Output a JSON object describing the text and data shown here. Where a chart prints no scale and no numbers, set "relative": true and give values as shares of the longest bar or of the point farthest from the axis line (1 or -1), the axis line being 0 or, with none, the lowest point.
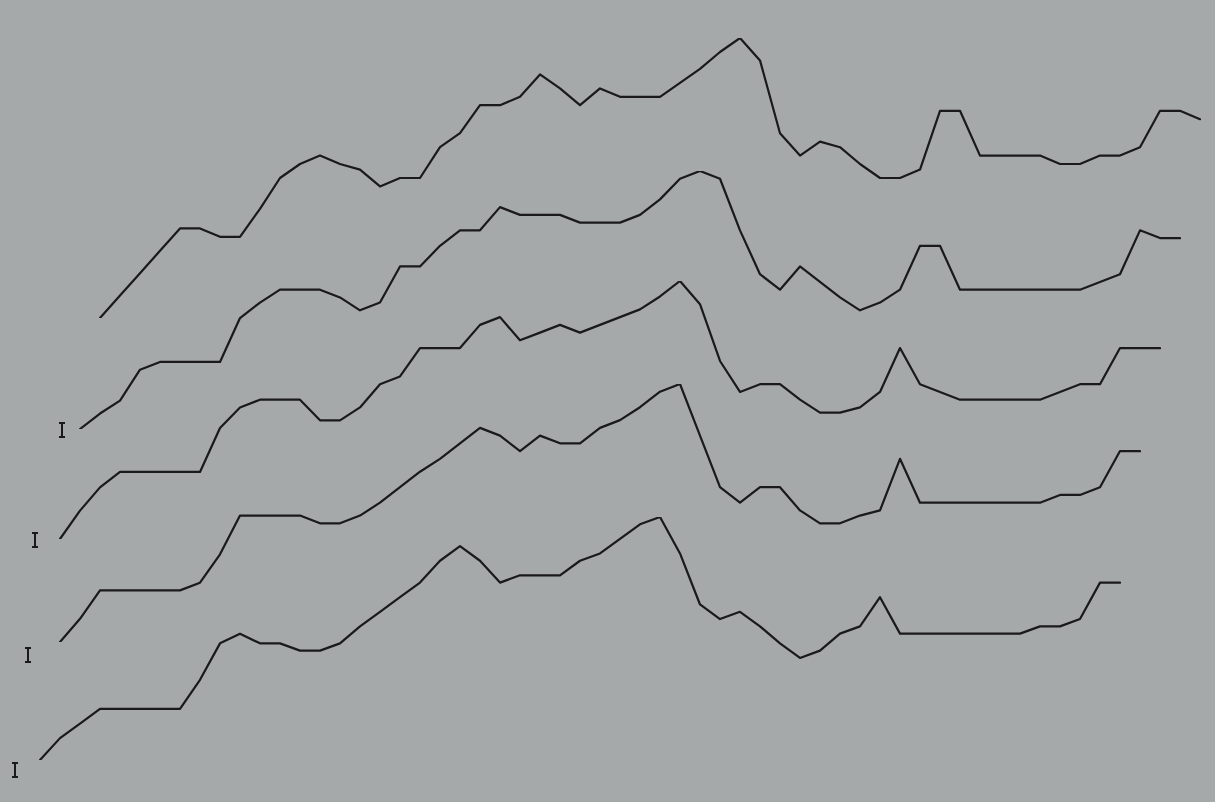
{
  "chart_data": [
    {
      "type": "line",
      "relative": true,
      "tick_labels": false,
      "marker": "none",
      "line_style": "solid",
      "categories": [
        null,
        null,
        null,
        null,
        null,
        null,
        null,
        null,
        null,
        null,
        null,
        null,
        null,
        null,
        null,
        null,
        null,
        null,
        null,
        null,
        null,
        null,
        null,
        null,
        null,
        null,
        null,
        null,
        null,
        null,
        null,
        null,
        null,
        null,
        null,
        null,
        null,
        null,
        null,
        null,
        null,
        null,
        null,
        null,
        null,
        null,
        null,
        null,
        null,
        null,
        null,
        null,
        null,
        null,
        null,
        null
      ],
      "series": [
        {
          "color": "#1a1a1a",
          "values": [
            0,
            0.08,
            0.16,
            0.24,
            0.32,
            0.32,
            0.29,
            0.29,
            0.39,
            0.5,
            0.55,
            0.58,
            0.55,
            0.53,
            0.47,
            0.5,
            0.5,
            0.61,
            0.66,
            0.76,
            0.76,
            0.79,
            0.87,
            0.82,
            0.76,
            0.82,
            0.79,
            0.79,
            0.79,
            0.84,
            0.89,
            0.95,
            1,
            0.92,
            0.66,
            0.58,
            0.63,
            0.61,
            0.55,
            0.5,
            0.5,
            0.53,
            0.74,
            0.74,
            0.58,
            0.58,
            0.58,
            0.58,
            0.55,
            0.55,
            0.58,
            0.58,
            0.61,
            0.74,
            0.74,
            0.71
          ]
        }
      ]
    },
    {
      "type": "line",
      "relative": true,
      "tick_labels": false,
      "marker": "none",
      "line_style": "solid",
      "categories": [
        null,
        null,
        null,
        null,
        null,
        null,
        null,
        null,
        null,
        null,
        null,
        null,
        null,
        null,
        null,
        null,
        null,
        null,
        null,
        null,
        null,
        null,
        null,
        null,
        null,
        null,
        null,
        null,
        null,
        null,
        null,
        null,
        null,
        null,
        null,
        null,
        null,
        null,
        null,
        null,
        null,
        null,
        null,
        null,
        null,
        null,
        null,
        null,
        null,
        null,
        null,
        null,
        null,
        null,
        null,
        null
      ],
      "series": [
        {
          "color": "#1a1a1a",
          "values": [
            0,
            0.06,
            0.11,
            0.23,
            0.26,
            0.26,
            0.26,
            0.26,
            0.43,
            0.49,
            0.54,
            0.54,
            0.54,
            0.51,
            0.46,
            0.49,
            0.63,
            0.63,
            0.71,
            0.77,
            0.77,
            0.86,
            0.83,
            0.83,
            0.83,
            0.8,
            0.8,
            0.8,
            0.83,
            0.89,
            0.97,
            1,
            0.97,
            0.77,
            0.6,
            0.54,
            0.63,
            0.57,
            0.51,
            0.46,
            0.49,
            0.54,
            0.71,
            0.71,
            0.54,
            0.54,
            0.54,
            0.54,
            0.54,
            0.54,
            0.54,
            0.57,
            0.6,
            0.77,
            0.74,
            0.74
          ]
        }
      ]
    },
    {
      "type": "line",
      "relative": true,
      "tick_labels": false,
      "marker": "none",
      "line_style": "solid",
      "categories": [
        null,
        null,
        null,
        null,
        null,
        null,
        null,
        null,
        null,
        null,
        null,
        null,
        null,
        null,
        null,
        null,
        null,
        null,
        null,
        null,
        null,
        null,
        null,
        null,
        null,
        null,
        null,
        null,
        null,
        null,
        null,
        null,
        null,
        null,
        null,
        null,
        null,
        null,
        null,
        null,
        null,
        null,
        null,
        null,
        null,
        null,
        null,
        null,
        null,
        null,
        null,
        null,
        null,
        null,
        null,
        null
      ],
      "series": [
        {
          "color": "#1a1a1a",
          "values": [
            0,
            0.11,
            0.2,
            0.26,
            0.26,
            0.26,
            0.26,
            0.26,
            0.43,
            0.51,
            0.54,
            0.54,
            0.54,
            0.46,
            0.46,
            0.51,
            0.6,
            0.63,
            0.74,
            0.74,
            0.74,
            0.83,
            0.86,
            0.77,
            0.8,
            0.83,
            0.8,
            0.83,
            0.86,
            0.89,
            0.94,
            1,
            0.91,
            0.69,
            0.57,
            0.6,
            0.6,
            0.54,
            0.49,
            0.49,
            0.51,
            0.57,
            0.74,
            0.6,
            0.57,
            0.54,
            0.54,
            0.54,
            0.54,
            0.54,
            0.57,
            0.6,
            0.6,
            0.74,
            0.74,
            0.74
          ]
        }
      ]
    },
    {
      "type": "line",
      "relative": true,
      "tick_labels": false,
      "marker": "none",
      "line_style": "solid",
      "categories": [
        null,
        null,
        null,
        null,
        null,
        null,
        null,
        null,
        null,
        null,
        null,
        null,
        null,
        null,
        null,
        null,
        null,
        null,
        null,
        null,
        null,
        null,
        null,
        null,
        null,
        null,
        null,
        null,
        null,
        null,
        null,
        null,
        null,
        null,
        null,
        null,
        null,
        null,
        null,
        null,
        null,
        null,
        null,
        null,
        null,
        null,
        null,
        null,
        null,
        null,
        null,
        null,
        null,
        null,
        null
      ],
      "series": [
        {
          "color": "#1a1a1a",
          "values": [
            0,
            0.09,
            0.2,
            0.2,
            0.2,
            0.2,
            0.2,
            0.23,
            0.34,
            0.49,
            0.49,
            0.49,
            0.49,
            0.46,
            0.46,
            0.49,
            0.54,
            0.6,
            0.66,
            0.71,
            0.77,
            0.83,
            0.8,
            0.74,
            0.8,
            0.77,
            0.77,
            0.83,
            0.86,
            0.91,
            0.97,
            1,
            0.8,
            0.6,
            0.54,
            0.6,
            0.6,
            0.51,
            0.46,
            0.46,
            0.49,
            0.51,
            0.71,
            0.54,
            0.54,
            0.54,
            0.54,
            0.54,
            0.54,
            0.54,
            0.57,
            0.57,
            0.6,
            0.74,
            0.74
          ]
        }
      ]
    },
    {
      "type": "line",
      "relative": true,
      "tick_labels": false,
      "marker": "none",
      "line_style": "solid",
      "categories": [
        null,
        null,
        null,
        null,
        null,
        null,
        null,
        null,
        null,
        null,
        null,
        null,
        null,
        null,
        null,
        null,
        null,
        null,
        null,
        null,
        null,
        null,
        null,
        null,
        null,
        null,
        null,
        null,
        null,
        null,
        null,
        null,
        null,
        null,
        null,
        null,
        null,
        null,
        null,
        null,
        null,
        null,
        null,
        null,
        null,
        null,
        null,
        null,
        null,
        null,
        null,
        null,
        null,
        null,
        null
      ],
      "series": [
        {
          "color": "#1a1a1a",
          "values": [
            0,
            0.09,
            0.15,
            0.21,
            0.21,
            0.21,
            0.21,
            0.21,
            0.33,
            0.48,
            0.52,
            0.48,
            0.48,
            0.45,
            0.45,
            0.48,
            0.55,
            0.61,
            0.67,
            0.73,
            0.82,
            0.88,
            0.82,
            0.73,
            0.76,
            0.76,
            0.76,
            0.82,
            0.85,
            0.91,
            0.97,
            1,
            0.85,
            0.64,
            0.58,
            0.61,
            0.55,
            0.48,
            0.42,
            0.45,
            0.52,
            0.55,
            0.67,
            0.52,
            0.52,
            0.52,
            0.52,
            0.52,
            0.52,
            0.52,
            0.55,
            0.55,
            0.58,
            0.73,
            0.73
          ]
        }
      ]
    }
  ]
}
